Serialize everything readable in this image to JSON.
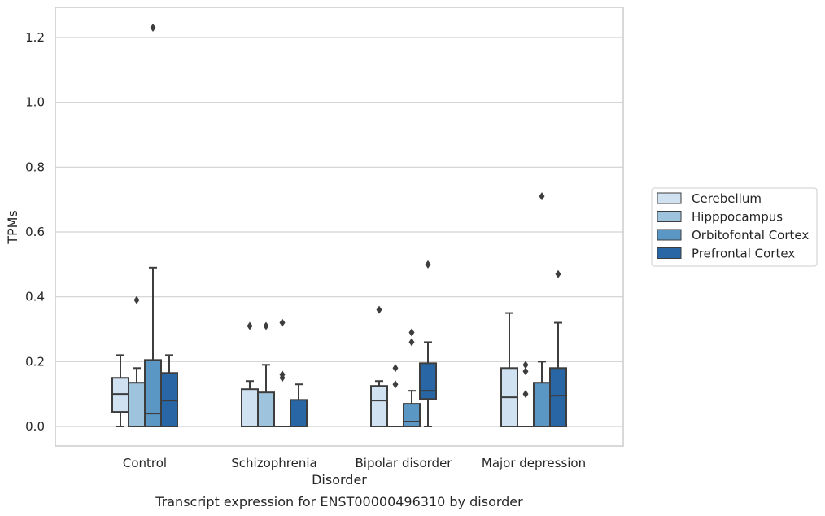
{
  "chart_data": {
    "type": "box",
    "xlabel": "Disorder",
    "ylabel": "TPMs",
    "caption": "Transcript expression for ENST00000496310 by disorder",
    "ylim": [
      -0.06,
      1.29
    ],
    "yticks": [
      0.0,
      0.2,
      0.4,
      0.6,
      0.8,
      1.0,
      1.2
    ],
    "ytick_labels": [
      "0.0",
      "0.2",
      "0.4",
      "0.6",
      "0.8",
      "1.0",
      "1.2"
    ],
    "grid": "horizontal",
    "legend_position": "right",
    "categories": [
      "Control",
      "Schizophrenia",
      "Bipolar disorder",
      "Major depression"
    ],
    "series": [
      {
        "name": "Cerebellum",
        "color": "#d0e1f2",
        "boxes": [
          {
            "q1": 0.045,
            "median": 0.1,
            "q3": 0.15,
            "whisker_low": 0.0,
            "whisker_high": 0.22,
            "outliers": []
          },
          {
            "q1": 0.0,
            "median": 0.0,
            "q3": 0.115,
            "whisker_low": 0.0,
            "whisker_high": 0.14,
            "outliers": [
              0.31
            ]
          },
          {
            "q1": 0.0,
            "median": 0.08,
            "q3": 0.125,
            "whisker_low": 0.0,
            "whisker_high": 0.14,
            "outliers": [
              0.36
            ]
          },
          {
            "q1": 0.0,
            "median": 0.09,
            "q3": 0.18,
            "whisker_low": 0.0,
            "whisker_high": 0.35,
            "outliers": []
          }
        ]
      },
      {
        "name": "Hipppocampus",
        "color": "#9dc3dd",
        "boxes": [
          {
            "q1": 0.0,
            "median": 0.0,
            "q3": 0.135,
            "whisker_low": 0.0,
            "whisker_high": 0.18,
            "outliers": [
              0.39
            ]
          },
          {
            "q1": 0.0,
            "median": 0.0,
            "q3": 0.105,
            "whisker_low": 0.0,
            "whisker_high": 0.19,
            "outliers": [
              0.31
            ]
          },
          {
            "q1": 0.0,
            "median": 0.0,
            "q3": 0.0,
            "whisker_low": 0.0,
            "whisker_high": 0.0,
            "outliers": [
              0.13,
              0.18
            ]
          },
          {
            "q1": 0.0,
            "median": 0.0,
            "q3": 0.0,
            "whisker_low": 0.0,
            "whisker_high": 0.0,
            "outliers": [
              0.1,
              0.17,
              0.19
            ]
          }
        ]
      },
      {
        "name": "Orbitofontal Cortex",
        "color": "#5b97c5",
        "boxes": [
          {
            "q1": 0.0,
            "median": 0.04,
            "q3": 0.205,
            "whisker_low": 0.0,
            "whisker_high": 0.49,
            "outliers": [
              1.23
            ]
          },
          {
            "q1": 0.0,
            "median": 0.0,
            "q3": 0.0,
            "whisker_low": 0.0,
            "whisker_high": 0.0,
            "outliers": [
              0.15,
              0.16,
              0.32
            ]
          },
          {
            "q1": 0.0,
            "median": 0.015,
            "q3": 0.07,
            "whisker_low": 0.0,
            "whisker_high": 0.11,
            "outliers": [
              0.26,
              0.29
            ]
          },
          {
            "q1": 0.0,
            "median": 0.0,
            "q3": 0.135,
            "whisker_low": 0.0,
            "whisker_high": 0.2,
            "outliers": [
              0.71
            ]
          }
        ]
      },
      {
        "name": "Prefrontal Cortex",
        "color": "#2866a6",
        "boxes": [
          {
            "q1": 0.0,
            "median": 0.08,
            "q3": 0.165,
            "whisker_low": 0.0,
            "whisker_high": 0.22,
            "outliers": []
          },
          {
            "q1": 0.0,
            "median": 0.0,
            "q3": 0.082,
            "whisker_low": 0.0,
            "whisker_high": 0.13,
            "outliers": []
          },
          {
            "q1": 0.085,
            "median": 0.11,
            "q3": 0.195,
            "whisker_low": 0.0,
            "whisker_high": 0.26,
            "outliers": [
              0.5
            ]
          },
          {
            "q1": 0.0,
            "median": 0.095,
            "q3": 0.18,
            "whisker_low": 0.0,
            "whisker_high": 0.32,
            "outliers": [
              0.47
            ]
          }
        ]
      }
    ]
  }
}
